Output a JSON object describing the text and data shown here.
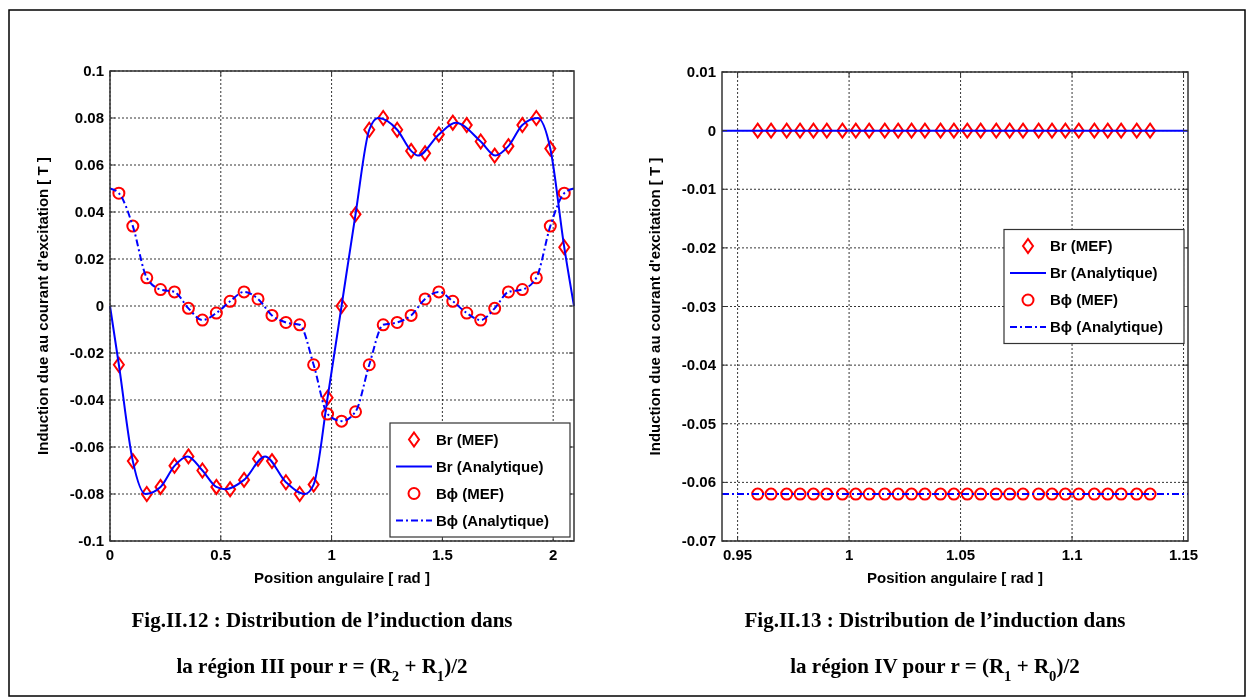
{
  "chart_data": [
    {
      "type": "line",
      "xlabel": "Position angulaire [ rad ]",
      "ylabel": "Induction due au courant d'excitation [ T ]",
      "xlim": [
        0,
        2.094
      ],
      "ylim": [
        -0.1,
        0.1
      ],
      "xticks": [
        0,
        0.5,
        1,
        1.5,
        2
      ],
      "yticks": [
        -0.1,
        -0.08,
        -0.06,
        -0.04,
        -0.02,
        0,
        0.02,
        0.04,
        0.06,
        0.08,
        0.1
      ],
      "grid": true,
      "legend": "bottom right",
      "annotations": [
        "Fig.II.12 : Distribution de l’induction dans",
        "la région III pour r = (R$_{2}$ + R$_{1}$)/2"
      ],
      "series": [
        {
          "name": "Br (MEF)",
          "type": "scatter",
          "marker": "diamond",
          "color": "#ff0000",
          "x": [
            0.04,
            0.103,
            0.166,
            0.228,
            0.291,
            0.354,
            0.417,
            0.48,
            0.542,
            0.605,
            0.668,
            0.731,
            0.794,
            0.856,
            0.919,
            0.982,
            1.045,
            1.108,
            1.17,
            1.233,
            1.296,
            1.359,
            1.422,
            1.484,
            1.547,
            1.61,
            1.673,
            1.736,
            1.798,
            1.861,
            1.924,
            1.987,
            2.05
          ],
          "values": [
            -0.025,
            -0.066,
            -0.08,
            -0.077,
            -0.068,
            -0.064,
            -0.07,
            -0.077,
            -0.078,
            -0.074,
            -0.065,
            -0.066,
            -0.075,
            -0.08,
            -0.076,
            -0.039,
            0,
            0.039,
            0.075,
            0.08,
            0.075,
            0.066,
            0.065,
            0.073,
            0.078,
            0.077,
            0.07,
            0.064,
            0.068,
            0.077,
            0.08,
            0.067,
            0.025
          ]
        },
        {
          "name": "Br (Analytique)",
          "line_style": "solid",
          "color": "#0000ff",
          "x": [
            0,
            0.04,
            0.103,
            0.16,
            0.228,
            0.291,
            0.35,
            0.417,
            0.48,
            0.52,
            0.605,
            0.7,
            0.794,
            0.88,
            0.919,
            0.982,
            1.045,
            1.108,
            1.17,
            1.21,
            1.296,
            1.359,
            1.39,
            1.484,
            1.56,
            1.673,
            1.74,
            1.798,
            1.861,
            1.93,
            1.987,
            2.05,
            2.094
          ],
          "values": [
            0,
            -0.025,
            -0.066,
            -0.08,
            -0.077,
            -0.068,
            -0.064,
            -0.07,
            -0.077,
            -0.078,
            -0.074,
            -0.064,
            -0.075,
            -0.08,
            -0.076,
            -0.039,
            0,
            0.039,
            0.075,
            0.08,
            0.075,
            0.066,
            0.064,
            0.073,
            0.078,
            0.07,
            0.064,
            0.068,
            0.077,
            0.08,
            0.067,
            0.025,
            0
          ]
        },
        {
          "name": "Bϕ (MEF)",
          "type": "scatter",
          "marker": "circle",
          "color": "#ff0000",
          "x": [
            0.04,
            0.103,
            0.166,
            0.228,
            0.291,
            0.354,
            0.417,
            0.48,
            0.542,
            0.605,
            0.668,
            0.731,
            0.794,
            0.856,
            0.919,
            0.982,
            1.045,
            1.108,
            1.17,
            1.233,
            1.296,
            1.359,
            1.422,
            1.484,
            1.547,
            1.61,
            1.673,
            1.736,
            1.798,
            1.861,
            1.924,
            1.987,
            2.05
          ],
          "values": [
            0.048,
            0.034,
            0.012,
            0.007,
            0.006,
            -0.001,
            -0.006,
            -0.003,
            0.002,
            0.006,
            0.003,
            -0.004,
            -0.007,
            -0.008,
            -0.025,
            -0.046,
            -0.049,
            -0.045,
            -0.025,
            -0.008,
            -0.007,
            -0.004,
            0.003,
            0.006,
            0.002,
            -0.003,
            -0.006,
            -0.001,
            0.006,
            0.007,
            0.012,
            0.034,
            0.048
          ]
        },
        {
          "name": "Bϕ (Analytique)",
          "line_style": "dashed",
          "color": "#0000ff",
          "x": [
            0,
            0.04,
            0.103,
            0.166,
            0.228,
            0.291,
            0.354,
            0.417,
            0.48,
            0.542,
            0.605,
            0.668,
            0.731,
            0.794,
            0.856,
            0.919,
            0.982,
            1.045,
            1.108,
            1.17,
            1.233,
            1.296,
            1.359,
            1.422,
            1.484,
            1.547,
            1.61,
            1.673,
            1.736,
            1.798,
            1.861,
            1.924,
            1.987,
            2.05,
            2.094
          ],
          "values": [
            0.05,
            0.048,
            0.034,
            0.012,
            0.007,
            0.006,
            -0.001,
            -0.006,
            -0.003,
            0.002,
            0.006,
            0.003,
            -0.004,
            -0.007,
            -0.008,
            -0.025,
            -0.046,
            -0.049,
            -0.045,
            -0.025,
            -0.008,
            -0.007,
            -0.004,
            0.003,
            0.006,
            0.002,
            -0.003,
            -0.006,
            -0.001,
            0.006,
            0.007,
            0.012,
            0.034,
            0.048,
            0.05
          ]
        }
      ]
    },
    {
      "type": "line",
      "xlabel": "Position angulaire [ rad ]",
      "ylabel": "Induction due au courant d'excitation [ T ]",
      "xlim": [
        0.943,
        1.152
      ],
      "ylim": [
        -0.07,
        0.01
      ],
      "xticks": [
        0.95,
        1,
        1.05,
        1.1,
        1.15
      ],
      "yticks": [
        -0.07,
        -0.06,
        -0.05,
        -0.04,
        -0.03,
        -0.02,
        -0.01,
        0,
        0.01
      ],
      "grid": true,
      "legend": "right",
      "annotations": [
        "Fig.II.13 : Distribution de l’induction dans",
        "la région IV pour r = (R$_{1}$ + R$_{0}$)/2"
      ],
      "series": [
        {
          "name": "Br (MEF)",
          "type": "scatter",
          "marker": "diamond",
          "color": "#ff0000",
          "x": [
            0.959,
            0.965,
            0.972,
            0.978,
            0.984,
            0.99,
            0.997,
            1.003,
            1.009,
            1.016,
            1.022,
            1.028,
            1.034,
            1.041,
            1.047,
            1.053,
            1.059,
            1.066,
            1.072,
            1.078,
            1.085,
            1.091,
            1.097,
            1.103,
            1.11,
            1.116,
            1.122,
            1.129,
            1.135
          ],
          "values": [
            0,
            0,
            0,
            0,
            0,
            0,
            0,
            0,
            0,
            0,
            0,
            0,
            0,
            0,
            0,
            0,
            0,
            0,
            0,
            0,
            0,
            0,
            0,
            0,
            0,
            0,
            0,
            0,
            0
          ]
        },
        {
          "name": "Br (Analytique)",
          "line_style": "solid",
          "color": "#0000ff",
          "x": [
            0.943,
            1.152
          ],
          "values": [
            0,
            0
          ]
        },
        {
          "name": "Bϕ (MEF)",
          "type": "scatter",
          "marker": "circle",
          "color": "#ff0000",
          "x": [
            0.959,
            0.965,
            0.972,
            0.978,
            0.984,
            0.99,
            0.997,
            1.003,
            1.009,
            1.016,
            1.022,
            1.028,
            1.034,
            1.041,
            1.047,
            1.053,
            1.059,
            1.066,
            1.072,
            1.078,
            1.085,
            1.091,
            1.097,
            1.103,
            1.11,
            1.116,
            1.122,
            1.129,
            1.135
          ],
          "values": [
            -0.062,
            -0.062,
            -0.062,
            -0.062,
            -0.062,
            -0.062,
            -0.062,
            -0.062,
            -0.062,
            -0.062,
            -0.062,
            -0.062,
            -0.062,
            -0.062,
            -0.062,
            -0.062,
            -0.062,
            -0.062,
            -0.062,
            -0.062,
            -0.062,
            -0.062,
            -0.062,
            -0.062,
            -0.062,
            -0.062,
            -0.062,
            -0.062,
            -0.062
          ]
        },
        {
          "name": "Bϕ (Analytique)",
          "line_style": "dashed",
          "color": "#0000ff",
          "x": [
            0.943,
            1.152
          ],
          "values": [
            -0.062,
            -0.062
          ]
        }
      ]
    }
  ]
}
